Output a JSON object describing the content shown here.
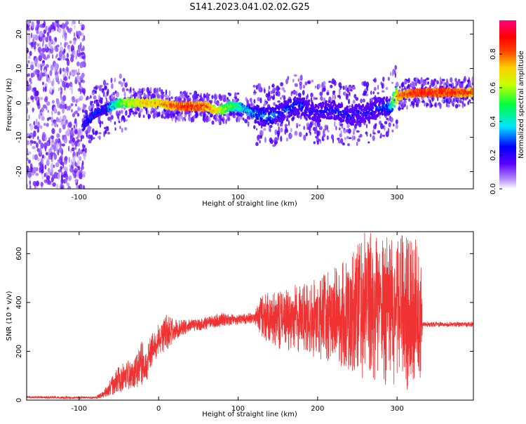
{
  "page": {
    "title": "S141.2023.041.02.02.G25"
  },
  "chart_data": [
    {
      "type": "heatmap",
      "title": "S141.2023.041.02.02.G25",
      "xlabel": "Height of straight line (km)",
      "ylabel": "Frequency (Hz)",
      "xlim": [
        -166,
        396
      ],
      "ylim": [
        -25,
        24
      ],
      "x_ticks": [
        -100,
        0,
        100,
        200,
        300
      ],
      "x_tick_labels": [
        "-100",
        "0",
        "100",
        "200",
        "300"
      ],
      "y_ticks": [
        -20,
        -10,
        0,
        10,
        20
      ],
      "y_tick_labels": [
        "-20",
        "-10",
        "0",
        "10",
        "20"
      ],
      "colorbar": {
        "label": "Normalized spectral amplitude",
        "range": [
          0.0,
          1.0
        ],
        "ticks": [
          0.0,
          0.2,
          0.4,
          0.6,
          0.8
        ],
        "tick_labels": [
          "0.0",
          "0.2",
          "0.4",
          "0.6",
          "0.8"
        ],
        "colormap": "rainbow"
      },
      "ridge": {
        "x": [
          -95,
          -80,
          -70,
          -60,
          -50,
          -40,
          -30,
          -20,
          0,
          20,
          40,
          60,
          70,
          80,
          90,
          100,
          110,
          120,
          130,
          140,
          150,
          160,
          170,
          180,
          190,
          200,
          210,
          220,
          230,
          240,
          250,
          260,
          270,
          280,
          290,
          300,
          310,
          330,
          360,
          396
        ],
        "freq": [
          -7,
          -3,
          -2,
          -1,
          0,
          0,
          0,
          0,
          0,
          -1,
          -1,
          -1,
          -2,
          -2,
          -1,
          -1,
          -2,
          -3,
          -4,
          -4,
          -3,
          -2,
          -1,
          -1,
          -2,
          -3,
          -2,
          -2,
          -3,
          -4,
          -3,
          -3,
          -2,
          -1,
          -1,
          2,
          2.5,
          3,
          3,
          3
        ],
        "amplitude": [
          0.3,
          0.35,
          0.3,
          0.45,
          0.6,
          0.7,
          0.75,
          0.8,
          0.8,
          0.9,
          0.95,
          0.9,
          0.8,
          0.7,
          0.6,
          0.55,
          0.45,
          0.4,
          0.4,
          0.4,
          0.35,
          0.35,
          0.35,
          0.35,
          0.3,
          0.3,
          0.3,
          0.3,
          0.3,
          0.3,
          0.3,
          0.3,
          0.3,
          0.35,
          0.4,
          0.85,
          0.9,
          0.95,
          0.95,
          0.9
        ]
      }
    },
    {
      "type": "line",
      "xlabel": "Height of straight line (km)",
      "ylabel": "SNR (10 * v/v)",
      "xlim": [
        -166,
        396
      ],
      "ylim": [
        0,
        690
      ],
      "x_ticks": [
        -100,
        0,
        100,
        200,
        300
      ],
      "x_tick_labels": [
        "-100",
        "0",
        "100",
        "200",
        "300"
      ],
      "y_ticks": [
        0,
        200,
        400,
        600
      ],
      "y_tick_labels": [
        "0",
        "200",
        "400",
        "600"
      ],
      "series": [
        {
          "color": "#f03232",
          "x": [
            -166,
            -120,
            -80,
            -70,
            -60,
            -50,
            -40,
            -30,
            -20,
            -15,
            -12,
            0,
            10,
            20,
            30,
            40,
            60,
            80,
            100,
            120,
            130,
            150,
            170,
            200,
            230,
            260,
            290,
            320,
            330,
            332,
            350,
            396
          ],
          "y_low": [
            8,
            5,
            5,
            10,
            20,
            30,
            40,
            50,
            60,
            60,
            120,
            190,
            200,
            245,
            265,
            280,
            290,
            300,
            310,
            315,
            250,
            210,
            200,
            170,
            140,
            80,
            50,
            40,
            30,
            300,
            300,
            300
          ],
          "y_high": [
            18,
            15,
            15,
            35,
            90,
            140,
            160,
            170,
            250,
            180,
            260,
            320,
            350,
            330,
            330,
            330,
            340,
            360,
            350,
            360,
            450,
            440,
            470,
            500,
            560,
            690,
            680,
            670,
            660,
            320,
            320,
            320
          ]
        }
      ]
    }
  ]
}
